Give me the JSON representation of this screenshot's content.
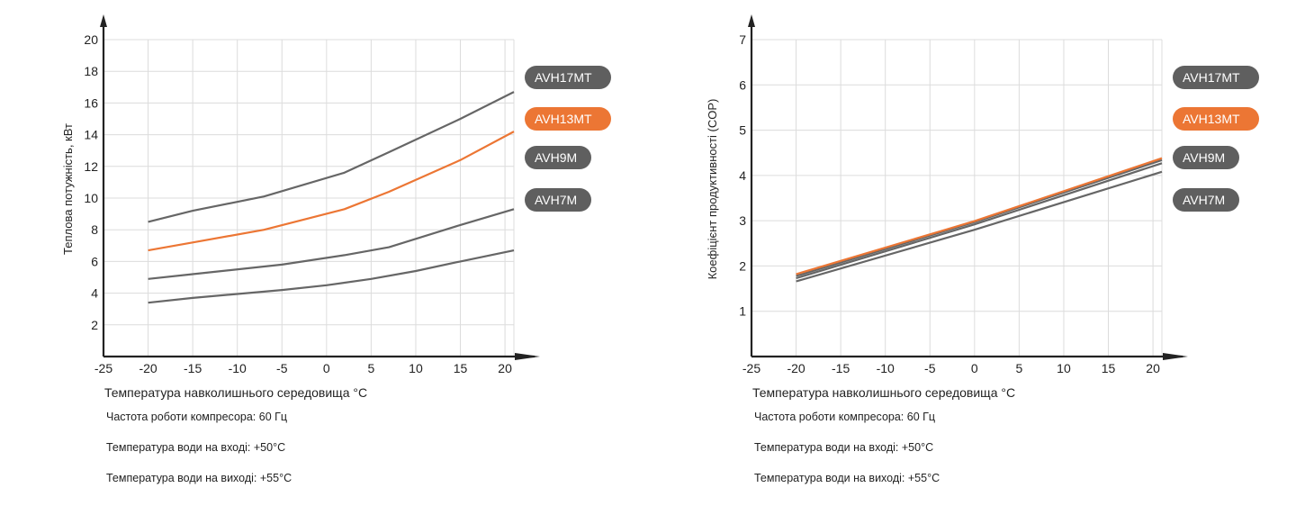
{
  "colors": {
    "series_gray": "#666666",
    "series_orange": "#ec7634",
    "grid": "#dcdcdc",
    "axis": "#222222",
    "legend_gray": "#5f5f5f"
  },
  "chart_data": [
    {
      "type": "line",
      "xlabel": "Температура навколишнього середовища °C",
      "ylabel": "Теплова потужність, кВт",
      "xlim": [
        -25,
        21
      ],
      "ylim": [
        0,
        20
      ],
      "x_ticks": [
        -25,
        -20,
        -15,
        -10,
        -5,
        0,
        5,
        10,
        15,
        20
      ],
      "y_ticks": [
        2,
        4,
        6,
        8,
        10,
        12,
        14,
        16,
        18,
        20
      ],
      "grid": true,
      "legend_position": "right",
      "legend": [
        "AVH17MT",
        "AVH13MT",
        "AVH9M",
        "AVH7M"
      ],
      "notes": [
        "Частота роботи компресора: 60 Гц",
        "Температура води на вході: +50°C",
        "Температура води на виході: +55°C"
      ],
      "series": [
        {
          "name": "AVH17MT",
          "color": "#666666",
          "x": [
            -20,
            -15,
            -7,
            2,
            7,
            15,
            21
          ],
          "y": [
            8.5,
            9.2,
            10.1,
            11.6,
            12.9,
            15.0,
            16.7
          ]
        },
        {
          "name": "AVH13MT",
          "color": "#ec7634",
          "x": [
            -20,
            -15,
            -7,
            2,
            7,
            15,
            21
          ],
          "y": [
            6.7,
            7.2,
            8.0,
            9.3,
            10.4,
            12.4,
            14.2
          ]
        },
        {
          "name": "AVH9M",
          "color": "#666666",
          "x": [
            -20,
            -15,
            -5,
            2,
            7,
            15,
            21
          ],
          "y": [
            4.9,
            5.2,
            5.8,
            6.4,
            6.9,
            8.3,
            9.3
          ]
        },
        {
          "name": "AVH7M",
          "color": "#666666",
          "x": [
            -20,
            -15,
            -5,
            0,
            5,
            10,
            15,
            21
          ],
          "y": [
            3.4,
            3.7,
            4.2,
            4.5,
            4.9,
            5.4,
            6.0,
            6.7
          ]
        }
      ]
    },
    {
      "type": "line",
      "xlabel": "Температура навколишнього середовища °C",
      "ylabel": "Коефіцієнт продуктивності (COP)",
      "xlim": [
        -25,
        21
      ],
      "ylim": [
        0,
        7
      ],
      "x_ticks": [
        -25,
        -20,
        -15,
        -10,
        -5,
        0,
        5,
        10,
        15,
        20
      ],
      "y_ticks": [
        1,
        2,
        3,
        4,
        5,
        6,
        7
      ],
      "grid": true,
      "legend_position": "right",
      "legend": [
        "AVH17MT",
        "AVH13MT",
        "AVH9M",
        "AVH7M"
      ],
      "notes": [
        "Частота роботи компресора: 60 Гц",
        "Температура води на вході: +50°C",
        "Температура води на виході: +55°C"
      ],
      "series": [
        {
          "name": "AVH17MT",
          "color": "#666666",
          "x": [
            -20,
            0,
            21
          ],
          "y": [
            1.78,
            2.97,
            4.34
          ]
        },
        {
          "name": "AVH13MT",
          "color": "#ec7634",
          "x": [
            -20,
            0,
            21
          ],
          "y": [
            1.82,
            2.99,
            4.38
          ]
        },
        {
          "name": "AVH9M",
          "color": "#666666",
          "x": [
            -20,
            0,
            21
          ],
          "y": [
            1.73,
            2.92,
            4.27
          ]
        },
        {
          "name": "AVH7M",
          "color": "#666666",
          "x": [
            -20,
            0,
            21
          ],
          "y": [
            1.66,
            2.8,
            4.08
          ]
        }
      ]
    }
  ]
}
